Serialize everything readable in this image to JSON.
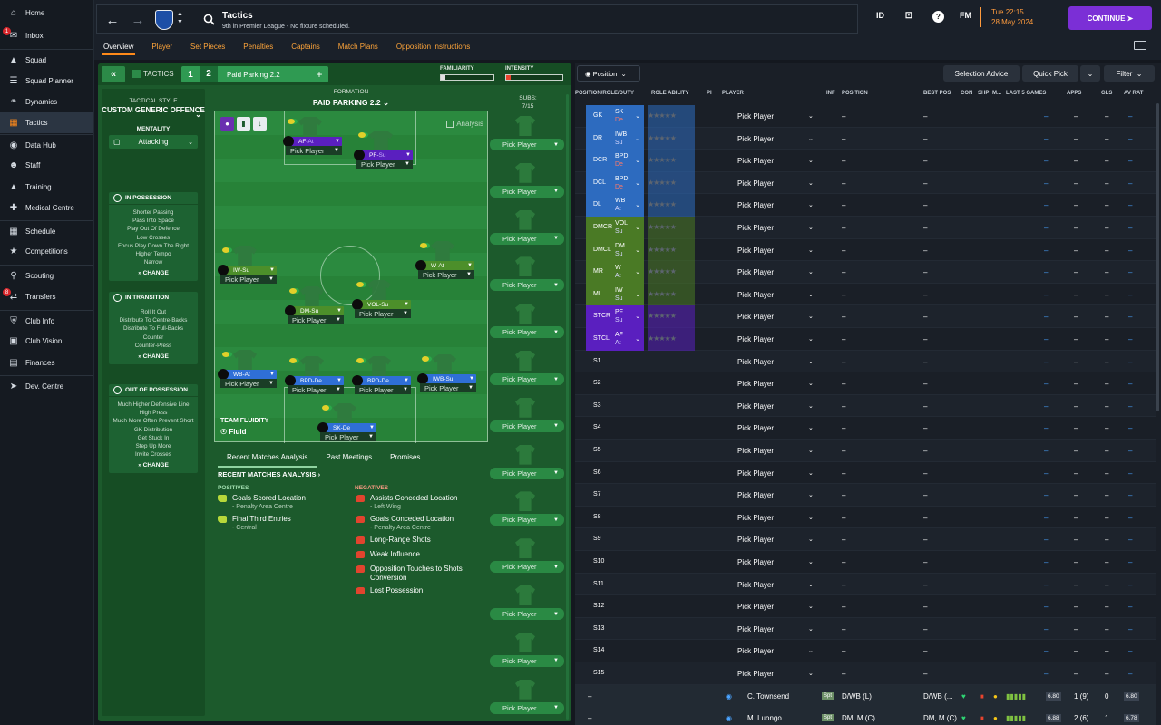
{
  "sidebar": {
    "items": [
      {
        "label": "Home",
        "icon": "home-icon"
      },
      {
        "label": "Inbox",
        "icon": "inbox-icon",
        "badge": "1"
      },
      {
        "label": "Squad",
        "icon": "shirt-icon"
      },
      {
        "label": "Squad Planner",
        "icon": "planner-icon"
      },
      {
        "label": "Dynamics",
        "icon": "dynamics-icon"
      },
      {
        "label": "Tactics",
        "icon": "tactics-icon"
      },
      {
        "label": "Data Hub",
        "icon": "data-hub-icon"
      },
      {
        "label": "Staff",
        "icon": "staff-icon"
      },
      {
        "label": "Training",
        "icon": "training-icon"
      },
      {
        "label": "Medical Centre",
        "icon": "medical-icon"
      },
      {
        "label": "Schedule",
        "icon": "calendar-icon"
      },
      {
        "label": "Competitions",
        "icon": "trophy-icon"
      },
      {
        "label": "Scouting",
        "icon": "scouting-icon"
      },
      {
        "label": "Transfers",
        "icon": "transfers-icon",
        "badge": "8"
      },
      {
        "label": "Club Info",
        "icon": "shield-icon"
      },
      {
        "label": "Club Vision",
        "icon": "vision-icon"
      },
      {
        "label": "Finances",
        "icon": "finances-icon"
      },
      {
        "label": "Dev. Centre",
        "icon": "dev-centre-icon"
      }
    ]
  },
  "header": {
    "title": "Tactics",
    "subtitle": "9th in Premier League - No fixture scheduled.",
    "icons": {
      "id": "ID",
      "fm": "FM",
      "help": "?"
    },
    "time": "Tue 22:15",
    "date": "28 May 2024",
    "continue": "CONTINUE",
    "tabs": [
      "Overview",
      "Player",
      "Set Pieces",
      "Penalties",
      "Captains",
      "Match Plans",
      "Opposition Instructions"
    ]
  },
  "tactic": {
    "label": "TACTICS",
    "slot1": "1",
    "slot2": "2",
    "name": "Paid Parking 2.2",
    "add": "+",
    "familiarity_label": "FAMILIARITY",
    "familiarity": 0.08,
    "intensity_label": "INTENSITY",
    "intensity": 0.08
  },
  "style": {
    "label": "TACTICAL STYLE",
    "value": "CUSTOM GENERIC OFFENCE",
    "mentality_label": "MENTALITY",
    "mentality": "Attacking",
    "in_possession": {
      "title": "IN POSSESSION",
      "items": [
        "Shorter Passing",
        "Pass Into Space",
        "Play Out Of Defence",
        "Low Crosses",
        "Focus Play Down The Right",
        "Higher Tempo",
        "Narrow"
      ],
      "change": "CHANGE"
    },
    "in_transition": {
      "title": "IN TRANSITION",
      "items": [
        "Roll It Out",
        "Distribute To Centre-Backs",
        "Distribute To Full-Backs",
        "Counter",
        "Counter-Press"
      ],
      "change": "CHANGE"
    },
    "out_of_possession": {
      "title": "OUT OF POSSESSION",
      "items": [
        "Much Higher Defensive Line",
        "High Press",
        "Much More Often Prevent Short GK Distribution",
        "Get Stuck In",
        "Step Up More",
        "Invite Crosses"
      ],
      "change": "CHANGE"
    }
  },
  "pitch": {
    "formation_label": "FORMATION",
    "formation": "PAID PARKING 2.2",
    "analysis": "Analysis",
    "fluidity_label": "TEAM FLUIDITY",
    "fluidity": "Fluid",
    "pick": "Pick Player",
    "positions": [
      {
        "role": "AF",
        "duty": "At",
        "color": "purple"
      },
      {
        "role": "PF",
        "duty": "Su",
        "color": "purple"
      },
      {
        "role": "IW",
        "duty": "Su",
        "color": "green"
      },
      {
        "role": "W",
        "duty": "At",
        "color": "green"
      },
      {
        "role": "DM",
        "duty": "Su",
        "color": "green"
      },
      {
        "role": "VOL",
        "duty": "Su",
        "color": "green"
      },
      {
        "role": "WB",
        "duty": "At",
        "color": "blue"
      },
      {
        "role": "BPD",
        "duty": "De",
        "color": "blue"
      },
      {
        "role": "BPD",
        "duty": "De",
        "color": "blue"
      },
      {
        "role": "IWB",
        "duty": "Su",
        "color": "blue"
      },
      {
        "role": "SK",
        "duty": "De",
        "color": "blue"
      }
    ]
  },
  "subs": {
    "label": "SUBS:",
    "count": "7/15",
    "pick": "Pick Player"
  },
  "analysis": {
    "tabs": [
      "Recent Matches Analysis",
      "Past Meetings",
      "Promises"
    ],
    "heading": "RECENT MATCHES ANALYSIS",
    "positives_label": "POSITIVES",
    "negatives_label": "NEGATIVES",
    "positives": [
      {
        "title": "Goals Scored Location",
        "sub": "- Penalty Area Centre"
      },
      {
        "title": "Final Third Entries",
        "sub": "- Central"
      }
    ],
    "negatives": [
      {
        "title": "Assists Conceded Location",
        "sub": "- Left Wing"
      },
      {
        "title": "Goals Conceded Location",
        "sub": "- Penalty Area Centre"
      },
      {
        "title": "Long-Range Shots",
        "sub": ""
      },
      {
        "title": "Weak Influence",
        "sub": ""
      },
      {
        "title": "Opposition Touches to Shots Conversion",
        "sub": ""
      },
      {
        "title": "Lost Possession",
        "sub": ""
      }
    ]
  },
  "right": {
    "position_btn": "Position",
    "selection_advice": "Selection Advice",
    "quick_pick": "Quick Pick",
    "filter": "Filter",
    "columns": [
      "POSITION/ROLE/DUTY",
      "ROLE ABILITY",
      "PI",
      "PLAYER",
      "INF",
      "POSITION",
      "BEST POS",
      "CON",
      "SHP",
      "M...",
      "LAST 5 GAMES",
      "APPS",
      "GLS",
      "AV RAT"
    ],
    "pick": "Pick Player",
    "dash": "–",
    "rows": [
      {
        "pos": "GK",
        "role": "SK",
        "duty": "De",
        "color": "#2d6bbf"
      },
      {
        "pos": "DR",
        "role": "IWB",
        "duty": "Su",
        "color": "#2d6bbf"
      },
      {
        "pos": "DCR",
        "role": "BPD",
        "duty": "De",
        "color": "#2d6bbf"
      },
      {
        "pos": "DCL",
        "role": "BPD",
        "duty": "De",
        "color": "#2d6bbf"
      },
      {
        "pos": "DL",
        "role": "WB",
        "duty": "At",
        "color": "#2d6bbf"
      },
      {
        "pos": "DMCR",
        "role": "VOL",
        "duty": "Su",
        "color": "#4a7a25"
      },
      {
        "pos": "DMCL",
        "role": "DM",
        "duty": "Su",
        "color": "#4a7a25"
      },
      {
        "pos": "MR",
        "role": "W",
        "duty": "At",
        "color": "#4a7a25"
      },
      {
        "pos": "ML",
        "role": "IW",
        "duty": "Su",
        "color": "#4a7a25"
      },
      {
        "pos": "STCR",
        "role": "PF",
        "duty": "Su",
        "color": "#5a1fbf"
      },
      {
        "pos": "STCL",
        "role": "AF",
        "duty": "At",
        "color": "#5a1fbf"
      },
      {
        "pos": "S1",
        "role": "",
        "duty": "",
        "color": ""
      },
      {
        "pos": "S2",
        "role": "",
        "duty": "",
        "color": ""
      },
      {
        "pos": "S3",
        "role": "",
        "duty": "",
        "color": ""
      },
      {
        "pos": "S4",
        "role": "",
        "duty": "",
        "color": ""
      },
      {
        "pos": "S5",
        "role": "",
        "duty": "",
        "color": ""
      },
      {
        "pos": "S6",
        "role": "",
        "duty": "",
        "color": ""
      },
      {
        "pos": "S7",
        "role": "",
        "duty": "",
        "color": ""
      },
      {
        "pos": "S8",
        "role": "",
        "duty": "",
        "color": ""
      },
      {
        "pos": "S9",
        "role": "",
        "duty": "",
        "color": ""
      },
      {
        "pos": "S10",
        "role": "",
        "duty": "",
        "color": ""
      },
      {
        "pos": "S11",
        "role": "",
        "duty": "",
        "color": ""
      },
      {
        "pos": "S12",
        "role": "",
        "duty": "",
        "color": ""
      },
      {
        "pos": "S13",
        "role": "",
        "duty": "",
        "color": ""
      },
      {
        "pos": "S14",
        "role": "",
        "duty": "",
        "color": ""
      },
      {
        "pos": "S15",
        "role": "",
        "duty": "",
        "color": ""
      }
    ],
    "players": [
      {
        "name": "C. Townsend",
        "position": "D/WB (L)",
        "best_pos": "D/WB (...",
        "badge": "Spt",
        "rating": "6.80",
        "apps": "1 (9)",
        "gls": "0",
        "av_rat": "6.80"
      },
      {
        "name": "M. Luongo",
        "position": "DM, M (C)",
        "best_pos": "DM, M (C)",
        "badge": "Spt",
        "rating": "6.88",
        "apps": "2 (6)",
        "gls": "1",
        "av_rat": "6.78"
      }
    ]
  }
}
